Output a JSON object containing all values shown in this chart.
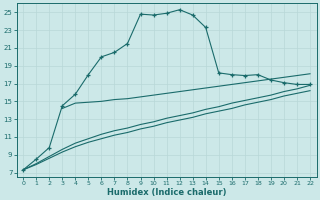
{
  "xlabel": "Humidex (Indice chaleur)",
  "bg_color": "#cce8e8",
  "grid_color": "#b8d8d8",
  "line_color": "#1a6b6b",
  "xlim": [
    -0.5,
    22.5
  ],
  "ylim": [
    6.5,
    26.0
  ],
  "xticks": [
    0,
    1,
    2,
    3,
    4,
    5,
    6,
    7,
    8,
    9,
    10,
    11,
    12,
    13,
    14,
    15,
    16,
    17,
    18,
    19,
    20,
    21,
    22
  ],
  "yticks": [
    7,
    9,
    11,
    13,
    15,
    17,
    19,
    21,
    23,
    25
  ],
  "line1_x": [
    0,
    1,
    2,
    3,
    4,
    5,
    6,
    7,
    8,
    9,
    10,
    11,
    12,
    13,
    14,
    15,
    16,
    17,
    18,
    19,
    20,
    21,
    22
  ],
  "line1_y": [
    7.3,
    8.5,
    9.8,
    14.5,
    15.8,
    18.0,
    20.0,
    20.5,
    21.5,
    24.8,
    24.7,
    24.9,
    25.3,
    24.7,
    23.3,
    18.2,
    18.0,
    17.9,
    18.0,
    17.4,
    17.1,
    16.9,
    16.9
  ],
  "line2_x": [
    3,
    4,
    5,
    6,
    7,
    8,
    9,
    10,
    11,
    12,
    13,
    14,
    15,
    16,
    17,
    18,
    19,
    20,
    21,
    22
  ],
  "line2_y": [
    14.2,
    14.8,
    14.9,
    15.0,
    15.2,
    15.3,
    15.5,
    15.7,
    15.9,
    16.1,
    16.3,
    16.5,
    16.7,
    16.9,
    17.1,
    17.3,
    17.5,
    17.7,
    17.9,
    18.1
  ],
  "line3_x": [
    0,
    1,
    2,
    3,
    4,
    5,
    6,
    7,
    8,
    9,
    10,
    11,
    12,
    13,
    14,
    15,
    16,
    17,
    18,
    19,
    20,
    21,
    22
  ],
  "line3_y": [
    7.3,
    8.0,
    8.8,
    9.6,
    10.3,
    10.8,
    11.3,
    11.7,
    12.0,
    12.4,
    12.7,
    13.1,
    13.4,
    13.7,
    14.1,
    14.4,
    14.8,
    15.1,
    15.4,
    15.7,
    16.1,
    16.4,
    16.8
  ],
  "line4_x": [
    0,
    1,
    2,
    3,
    4,
    5,
    6,
    7,
    8,
    9,
    10,
    11,
    12,
    13,
    14,
    15,
    16,
    17,
    18,
    19,
    20,
    21,
    22
  ],
  "line4_y": [
    7.3,
    7.9,
    8.6,
    9.3,
    9.9,
    10.4,
    10.8,
    11.2,
    11.5,
    11.9,
    12.2,
    12.6,
    12.9,
    13.2,
    13.6,
    13.9,
    14.2,
    14.6,
    14.9,
    15.2,
    15.6,
    15.9,
    16.2
  ]
}
